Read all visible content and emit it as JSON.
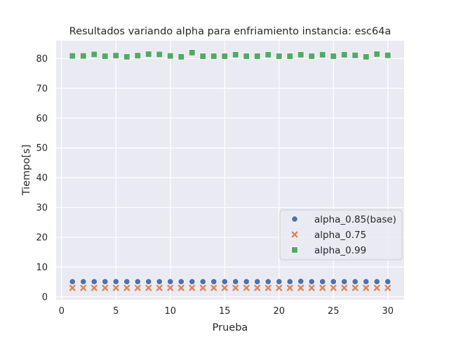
{
  "chart_data": {
    "type": "scatter",
    "title": "Resultados variando alpha para enfriamiento instancia: esc64a",
    "xlabel": "Prueba",
    "ylabel": "Tiempo[s]",
    "xlim": [
      -0.5,
      31.5
    ],
    "ylim": [
      -1,
      86
    ],
    "xticks": [
      0,
      5,
      10,
      15,
      20,
      25,
      30
    ],
    "yticks": [
      0,
      10,
      20,
      30,
      40,
      50,
      60,
      70,
      80
    ],
    "grid": true,
    "legend_position": "center-right",
    "background": "#eaeaf2",
    "series": [
      {
        "name": "alpha_0.85(base)",
        "marker": "circle",
        "color": "#4c72b0",
        "x": [
          1,
          2,
          3,
          4,
          5,
          6,
          7,
          8,
          9,
          10,
          11,
          12,
          13,
          14,
          15,
          16,
          17,
          18,
          19,
          20,
          21,
          22,
          23,
          24,
          25,
          26,
          27,
          28,
          29,
          30
        ],
        "y": [
          5.1,
          5.1,
          5.1,
          5.1,
          5.1,
          5.1,
          5.1,
          5.1,
          5.1,
          5.1,
          5.1,
          5.1,
          5.1,
          5.1,
          5.1,
          5.1,
          5.1,
          5.1,
          5.1,
          5.1,
          5.1,
          5.2,
          5.1,
          5.1,
          5.1,
          5.1,
          5.1,
          5.1,
          5.1,
          5.1
        ]
      },
      {
        "name": "alpha_0.75",
        "marker": "x",
        "color": "#dd8452",
        "x": [
          1,
          2,
          3,
          4,
          5,
          6,
          7,
          8,
          9,
          10,
          11,
          12,
          13,
          14,
          15,
          16,
          17,
          18,
          19,
          20,
          21,
          22,
          23,
          24,
          25,
          26,
          27,
          28,
          29,
          30
        ],
        "y": [
          3.0,
          3.0,
          3.0,
          3.0,
          3.0,
          3.0,
          3.0,
          3.0,
          3.0,
          3.0,
          3.0,
          3.0,
          3.0,
          3.0,
          3.0,
          3.0,
          3.0,
          3.0,
          3.0,
          3.0,
          3.0,
          3.0,
          3.0,
          3.0,
          3.0,
          3.0,
          3.0,
          3.0,
          3.0,
          3.0
        ]
      },
      {
        "name": "alpha_0.99",
        "marker": "square",
        "color": "#55a868",
        "x": [
          1,
          2,
          3,
          4,
          5,
          6,
          7,
          8,
          9,
          10,
          11,
          12,
          13,
          14,
          15,
          16,
          17,
          18,
          19,
          20,
          21,
          22,
          23,
          24,
          25,
          26,
          27,
          28,
          29,
          30
        ],
        "y": [
          80.9,
          80.9,
          81.4,
          80.8,
          81.0,
          80.6,
          81.0,
          81.5,
          81.4,
          80.9,
          80.6,
          82.0,
          80.8,
          80.8,
          80.8,
          81.3,
          80.8,
          80.8,
          81.3,
          80.8,
          80.8,
          81.3,
          80.8,
          81.3,
          80.8,
          81.3,
          81.1,
          80.6,
          81.5,
          81.1
        ]
      }
    ]
  }
}
